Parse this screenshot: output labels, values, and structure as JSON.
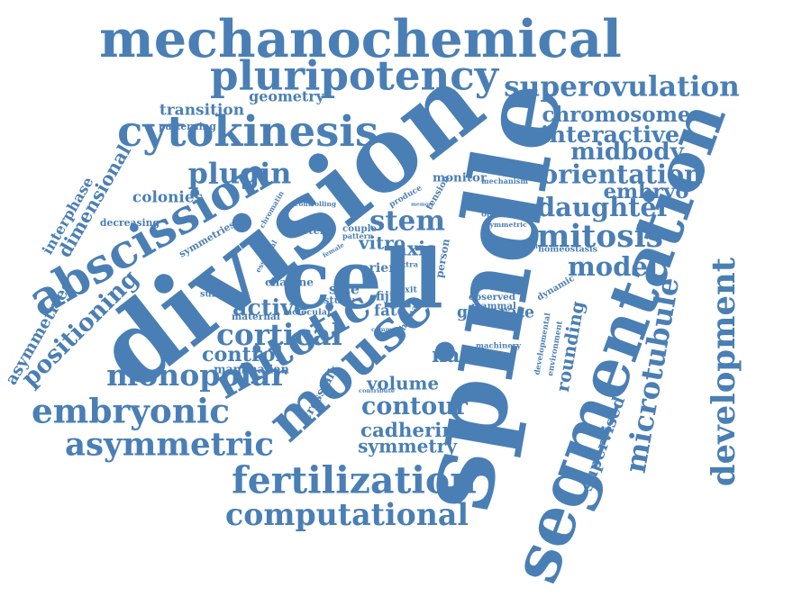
{
  "style": {
    "word_color": "#4a7fb5",
    "background": "#ffffff"
  },
  "words": [
    {
      "text": "mechanochemical"
    },
    {
      "text": "pluripotency"
    },
    {
      "text": "superovulation"
    },
    {
      "text": "geometry"
    },
    {
      "text": "transition"
    },
    {
      "text": "patterning"
    },
    {
      "text": "cytokinesis"
    },
    {
      "text": "chromosome"
    },
    {
      "text": "interactive"
    },
    {
      "text": "midbody"
    },
    {
      "text": "orientation"
    },
    {
      "text": "embryo"
    },
    {
      "text": "daughter"
    },
    {
      "text": "mitosis"
    },
    {
      "text": "model"
    },
    {
      "text": "plugin"
    },
    {
      "text": "colonies"
    },
    {
      "text": "monitor"
    },
    {
      "text": "mechanism"
    },
    {
      "text": "tension"
    },
    {
      "text": "produce"
    },
    {
      "text": "stem"
    },
    {
      "text": "homeostasis"
    },
    {
      "text": "intrinsic"
    },
    {
      "text": "physical"
    },
    {
      "text": "decreasing"
    },
    {
      "text": "symmetries"
    },
    {
      "text": "chromatin"
    },
    {
      "text": "controlling"
    },
    {
      "text": "protein"
    },
    {
      "text": "vitro"
    },
    {
      "text": "axis"
    },
    {
      "text": "orient"
    },
    {
      "text": "extra"
    },
    {
      "text": "couple"
    },
    {
      "text": "pattern"
    },
    {
      "text": "objective"
    },
    {
      "text": "symmetric"
    },
    {
      "text": "chaigne"
    },
    {
      "text": "fiji"
    },
    {
      "text": "exit"
    },
    {
      "text": "size"
    },
    {
      "text": "study"
    },
    {
      "text": "fate"
    },
    {
      "text": "human"
    },
    {
      "text": "observed"
    },
    {
      "text": "mammal"
    },
    {
      "text": "sufficient"
    },
    {
      "text": "active"
    },
    {
      "text": "maternal"
    },
    {
      "text": "molecular"
    },
    {
      "text": "cortical"
    },
    {
      "text": "control"
    },
    {
      "text": "mammalian"
    },
    {
      "text": "monopolar"
    },
    {
      "text": "generate"
    },
    {
      "text": "machinery"
    },
    {
      "text": "rounding"
    },
    {
      "text": "naive"
    },
    {
      "text": "volume"
    },
    {
      "text": "contribute"
    },
    {
      "text": "common"
    },
    {
      "text": "contour"
    },
    {
      "text": "crosstalk"
    },
    {
      "text": "cadherin"
    },
    {
      "text": "symmetry"
    },
    {
      "text": "embryonic"
    },
    {
      "text": "asymmetric"
    },
    {
      "text": "fertilization"
    },
    {
      "text": "computational"
    },
    {
      "text": "supervised"
    },
    {
      "text": "microtubule"
    },
    {
      "text": "development"
    },
    {
      "text": "developmental"
    },
    {
      "text": "environment"
    },
    {
      "text": "dynamic"
    },
    {
      "text": "interphase"
    },
    {
      "text": "dimensional"
    },
    {
      "text": "abscission"
    },
    {
      "text": "asymmetries"
    },
    {
      "text": "positioning"
    },
    {
      "text": "division"
    },
    {
      "text": "spindle"
    },
    {
      "text": "cell"
    },
    {
      "text": "segmentation"
    },
    {
      "text": "mouse"
    },
    {
      "text": "mitotic"
    },
    {
      "text": "person"
    },
    {
      "text": "memory"
    },
    {
      "text": "female"
    },
    {
      "text": "essential"
    }
  ]
}
